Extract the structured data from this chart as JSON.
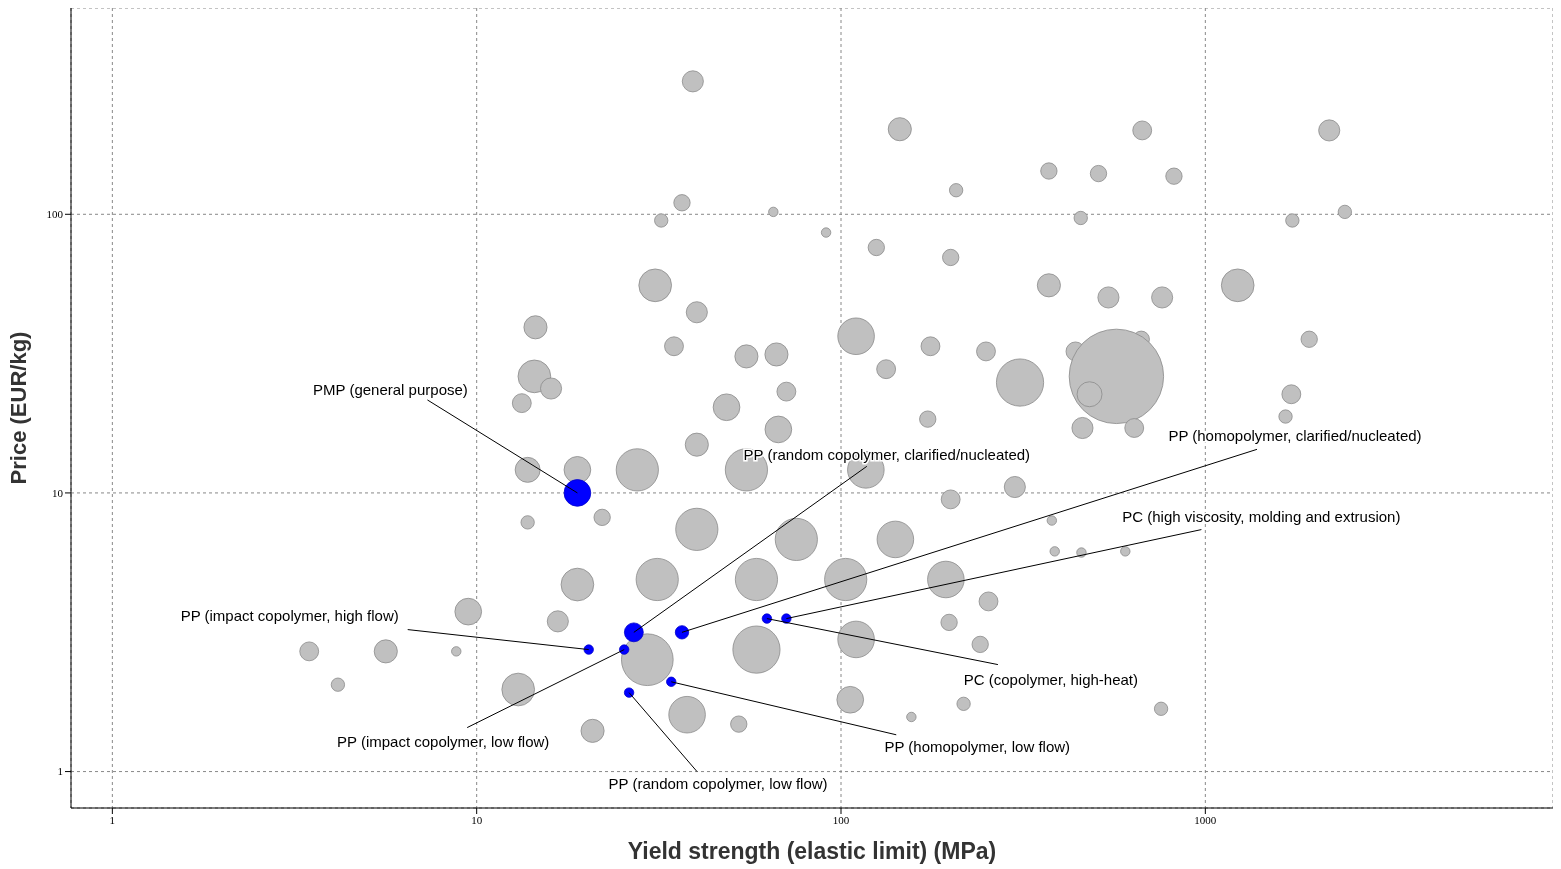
{
  "chart_data": {
    "type": "bubble",
    "xlabel": "Yield strength (elastic limit) (MPa)",
    "ylabel": "Price (EUR/kg)",
    "log": "xy",
    "grid": true,
    "xlim": [
      0.77,
      9000
    ],
    "xticks": [
      1,
      10,
      100,
      1000
    ],
    "ylim": [
      0.74,
      550
    ],
    "yticks": [
      1,
      10,
      100
    ],
    "series": [
      {
        "color": "#c0c0c0",
        "x": [
          39.2,
          145,
          671,
          2188,
          372,
          820,
          509,
          207,
          36.6,
          32.1,
          1733,
          2415,
          455,
          65.2,
          30.9,
          1227,
          372,
          542,
          761,
          14.5,
          40.2,
          110,
          91,
          125,
          200,
          667,
          1928,
          250,
          440,
          570,
          310,
          14.4,
          13.3,
          16,
          34.8,
          55,
          66.5,
          176,
          133,
          481,
          460,
          1722,
          1660,
          638,
          173,
          70.8,
          48.5,
          67.3,
          40.2,
          13.8,
          27.6,
          18.9,
          55,
          117,
          300,
          200,
          22.1,
          13.8,
          40.2,
          75.4,
          141,
          379,
          386,
          457,
          603,
          18.9,
          31.3,
          58.6,
          103,
          194,
          254,
          9.48,
          16.7,
          3.47,
          5.63,
          4.16,
          8.79,
          13,
          29.4,
          58.6,
          110,
          37.8,
          20.8,
          106,
          756,
          217,
          156,
          52.4,
          198,
          241
        ],
        "values": [
          300,
          202,
          200,
          200,
          143,
          137,
          140,
          122,
          110,
          95,
          95,
          102,
          97,
          102,
          55.6,
          55.6,
          55.6,
          50.3,
          50.3,
          39.3,
          44.5,
          36.5,
          86,
          76,
          70,
          35.6,
          35.6,
          32.2,
          32.2,
          26.2,
          24.9,
          26.2,
          21,
          23.7,
          33.6,
          30.9,
          31.4,
          33.6,
          27.8,
          22.6,
          17.1,
          22.6,
          18.8,
          17.1,
          18.4,
          23.1,
          20.3,
          16.9,
          14.9,
          12.1,
          12.1,
          12.1,
          12.1,
          12.1,
          10.5,
          9.48,
          8.17,
          7.84,
          7.4,
          6.81,
          6.81,
          7.96,
          6.17,
          6.11,
          6.17,
          4.69,
          4.89,
          4.89,
          4.89,
          4.89,
          4.08,
          3.75,
          3.46,
          2.7,
          2.7,
          2.05,
          2.7,
          1.97,
          2.52,
          2.74,
          2.98,
          1.6,
          1.4,
          1.81,
          1.68,
          1.75,
          1.57,
          1.48,
          3.43,
          2.86
        ],
        "sizes": [
          0.05,
          0.06,
          0.04,
          0.05,
          0.03,
          0.03,
          0.03,
          0.02,
          0.03,
          0.02,
          0.02,
          0.02,
          0.02,
          0.01,
          0.12,
          0.12,
          0.06,
          0.05,
          0.05,
          0.06,
          0.05,
          0.15,
          0.01,
          0.03,
          0.03,
          0.03,
          0.03,
          0.04,
          0.04,
          1,
          0.25,
          0.12,
          0.04,
          0.05,
          0.04,
          0.06,
          0.06,
          0.04,
          0.04,
          0.07,
          0.05,
          0.04,
          0.02,
          0.04,
          0.03,
          0.04,
          0.08,
          0.08,
          0.06,
          0.07,
          0.2,
          0.08,
          0.2,
          0.15,
          0.05,
          0.04,
          0.03,
          0.02,
          0.2,
          0.2,
          0.15,
          0.01,
          0.01,
          0.01,
          0.01,
          0.12,
          0.2,
          0.2,
          0.2,
          0.15,
          0.04,
          0.08,
          0.05,
          0.04,
          0.06,
          0.02,
          0.01,
          0.12,
          0.3,
          0.25,
          0.15,
          0.15,
          0.06,
          0.08,
          0.02,
          0.02,
          0.01,
          0.03,
          0.03,
          0.03
        ]
      },
      {
        "color": "#0000ff",
        "x": [
          18.9,
          27,
          36.6,
          70.8,
          62.6,
          20.3,
          25.4,
          34.2,
          26.2
        ],
        "values": [
          10,
          3.16,
          3.16,
          3.54,
          3.54,
          2.74,
          2.74,
          2.1,
          1.92
        ],
        "sizes": [
          0.08,
          0.04,
          0.02,
          0.01,
          0.01,
          0.01,
          0.01,
          0.01,
          0.01
        ]
      }
    ],
    "annotations": [
      {
        "text": "PMP (general purpose)",
        "x": 18.9,
        "y": 10
      },
      {
        "text": "PP (random copolymer, clarified/nucleated)",
        "x": 27,
        "y": 3.16
      },
      {
        "text": "PP (homopolymer, clarified/nucleated)",
        "x": 36.6,
        "y": 3.16
      },
      {
        "text": "PC (high viscosity, molding and extrusion)",
        "x": 70.8,
        "y": 3.54
      },
      {
        "text": "PC (copolymer, high-heat)",
        "x": 62.6,
        "y": 3.54
      },
      {
        "text": "PP (impact copolymer, high flow)",
        "x": 20.3,
        "y": 2.74
      },
      {
        "text": "PP (impact copolymer, low flow)",
        "x": 25.4,
        "y": 2.74
      },
      {
        "text": "PP (homopolymer, low flow)",
        "x": 34.2,
        "y": 2.1
      },
      {
        "text": "PP (random copolymer, low flow)",
        "x": 26.2,
        "y": 1.92
      }
    ]
  }
}
